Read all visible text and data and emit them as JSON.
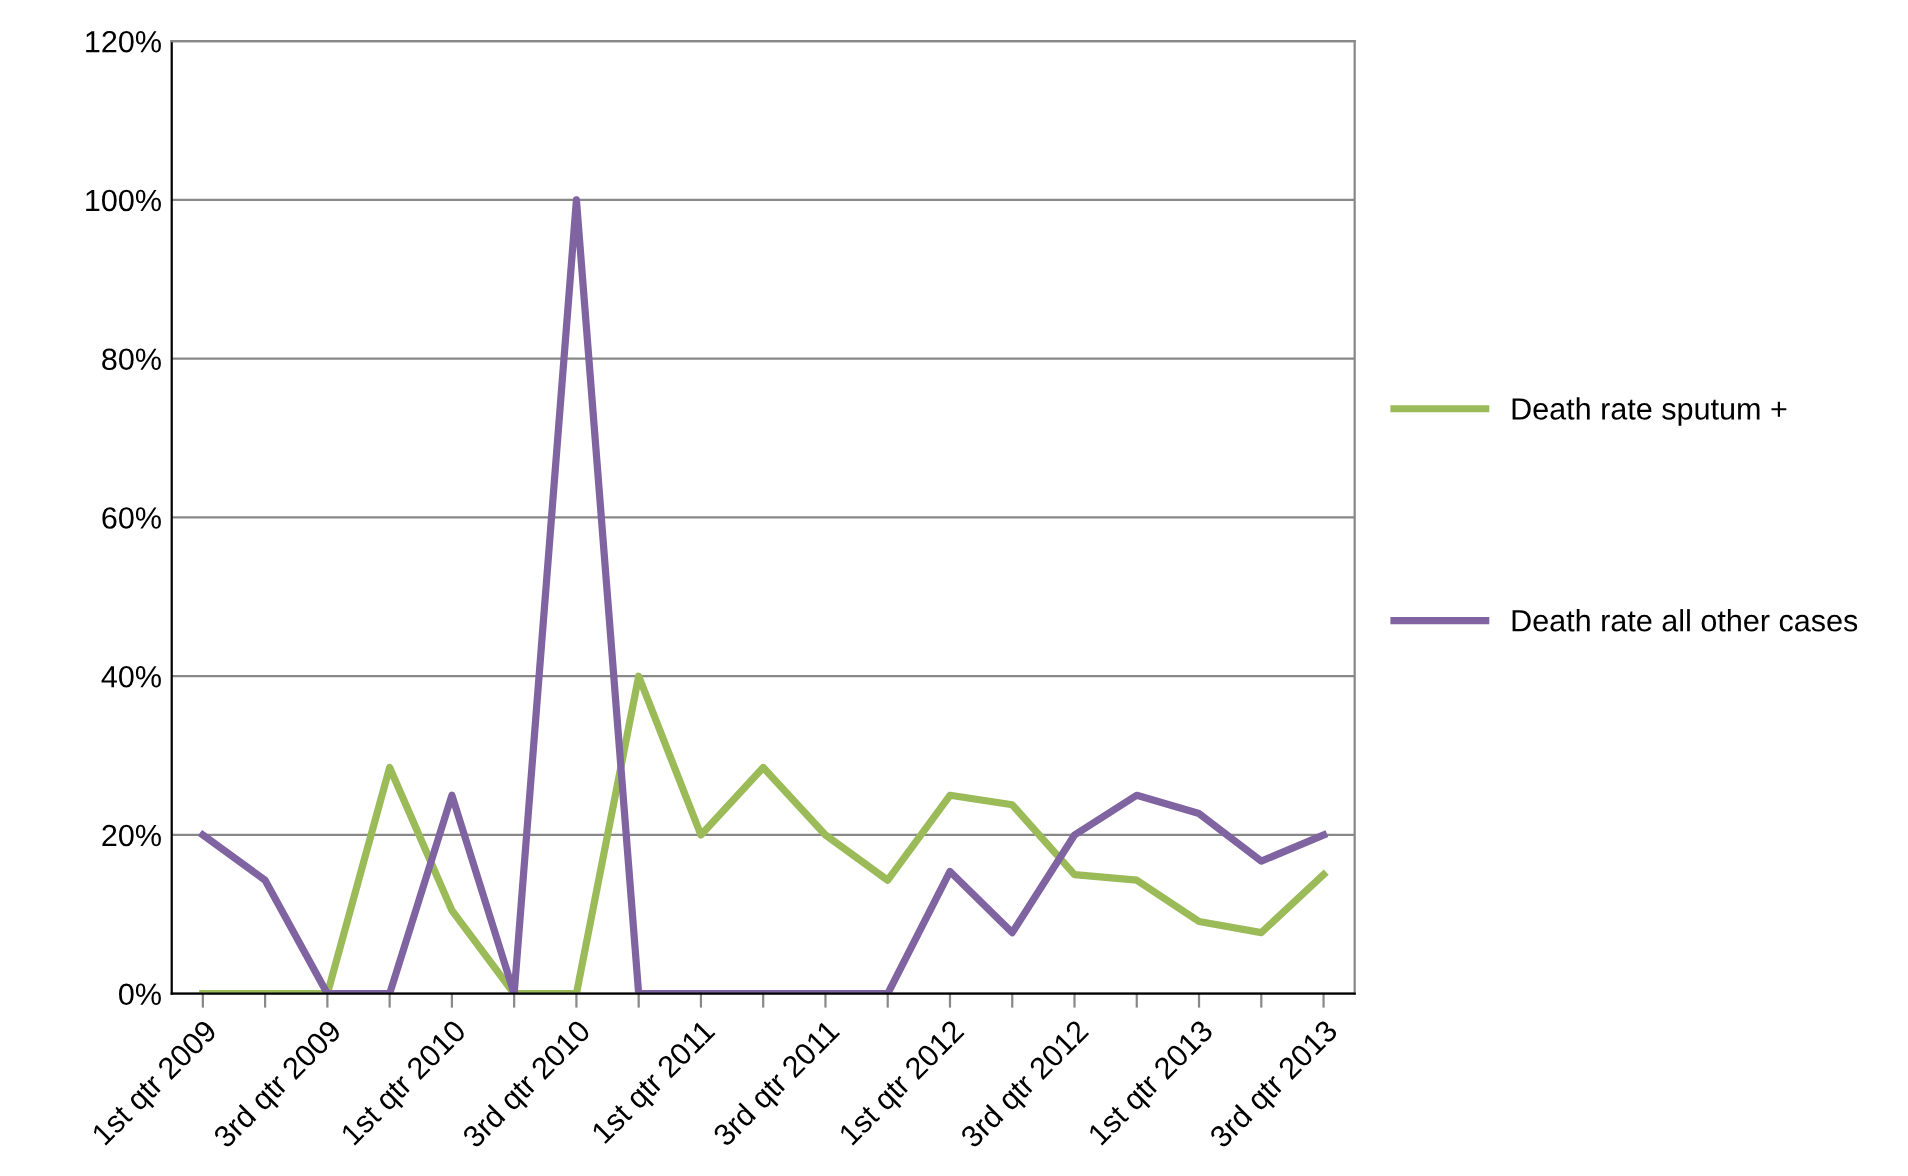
{
  "chart_data": {
    "type": "line",
    "categories": [
      "1st qtr 2009",
      null,
      "3rd qtr 2009",
      null,
      "1st qtr 2010",
      null,
      "3rd qtr 2010",
      null,
      "1st qtr 2011",
      null,
      "3rd qtr 2011",
      null,
      "1st qtr 2012",
      null,
      "3rd qtr 2012",
      null,
      "1st qtr 2013",
      null,
      "3rd qtr 2013"
    ],
    "series": [
      {
        "name": "Death rate sputum +",
        "color": "#9bbb59",
        "values": [
          0,
          0,
          0,
          28.5,
          10.5,
          0,
          0,
          40,
          20,
          28.5,
          20,
          14.3,
          25,
          23.8,
          15,
          14.3,
          9.1,
          7.7,
          15
        ]
      },
      {
        "name": "Death rate all other cases",
        "color": "#8064a2",
        "values": [
          20,
          14.3,
          0,
          0,
          25,
          0,
          100,
          0,
          0,
          0,
          0,
          0,
          15.4,
          7.7,
          20,
          25,
          22.7,
          16.7,
          20
        ]
      }
    ],
    "ylim": [
      0,
      120
    ],
    "yticks": [
      {
        "value": 0,
        "label": "0%"
      },
      {
        "value": 20,
        "label": "20%"
      },
      {
        "value": 40,
        "label": "40%"
      },
      {
        "value": 60,
        "label": "60%"
      },
      {
        "value": 80,
        "label": "80%"
      },
      {
        "value": 100,
        "label": "100%"
      },
      {
        "value": 120,
        "label": "120%"
      }
    ],
    "grid": "y",
    "legend": "right",
    "marker": "none",
    "line_style": "solid"
  }
}
